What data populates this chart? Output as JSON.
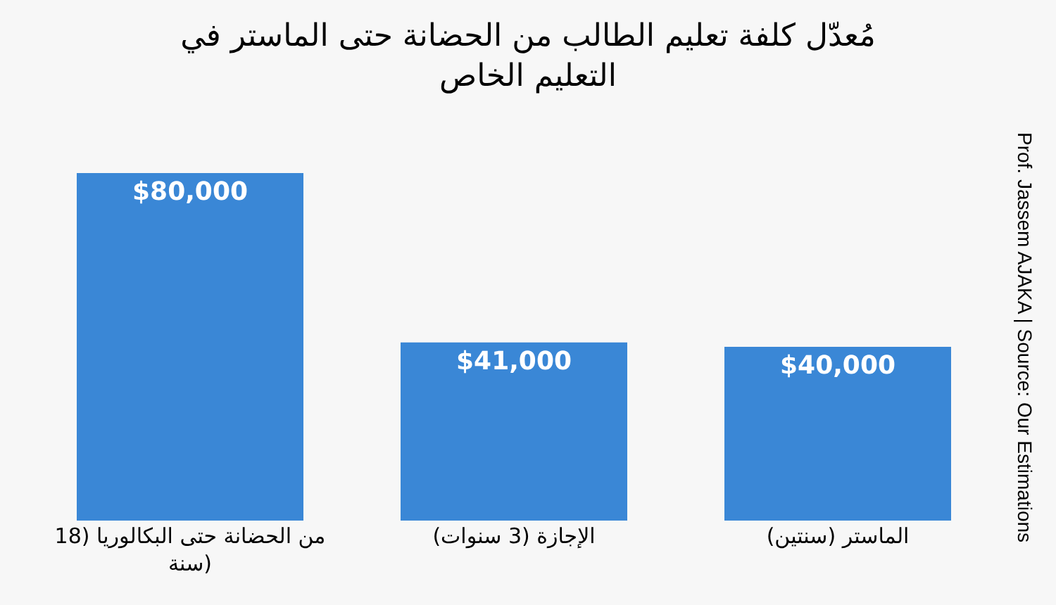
{
  "chart_data": {
    "type": "bar",
    "title": "مُعدّل كلفة تعليم الطالب من الحضانة حتى الماستر في\nالتعليم الخاص",
    "categories": [
      "من الحضانة حتى البكالوريا (18 سنة)",
      "الإجازة (3 سنوات)",
      "الماستر (سنتين)"
    ],
    "values": [
      80000,
      41000,
      40000
    ],
    "value_labels": [
      "$80,000",
      "$41,000",
      "$40,000"
    ],
    "color": "#3a87d6",
    "annotations": [
      "Prof. Jassem AJAKA | Source: Our Estimations"
    ],
    "grid": false,
    "legend": false
  }
}
